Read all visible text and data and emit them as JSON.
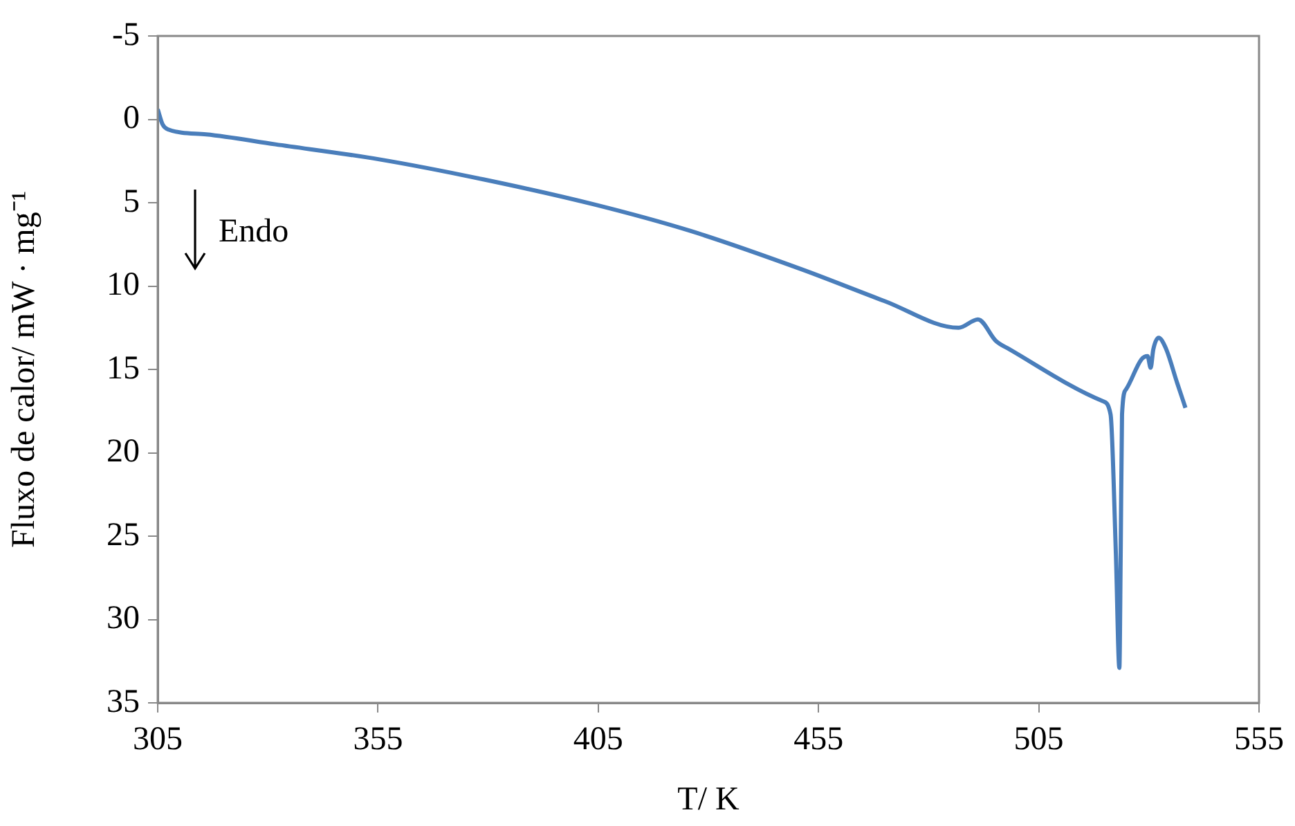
{
  "chart_data": {
    "type": "line",
    "xlabel": "T/ K",
    "ylabel": "Fluxo de calor/ mW · mg⁻¹",
    "annotations": [
      "Endo"
    ],
    "xlim": [
      305,
      555
    ],
    "xticks": [
      305,
      355,
      405,
      455,
      505,
      555
    ],
    "ylim": [
      35,
      -5
    ],
    "yticks": [
      -5,
      0,
      5,
      10,
      15,
      20,
      25,
      30,
      35
    ],
    "grid": false,
    "legend": false,
    "marker": "none",
    "line_style": "solid",
    "series": [
      {
        "color": "#4a7ebb",
        "x": [
          305,
          306.1,
          307.3,
          316,
          331.7,
          355.3,
          378.9,
          404,
          426,
          451.2,
          470,
          486.8,
          491.2,
          495.3,
          498.4,
          519.5,
          521.3,
          522.5,
          523.3,
          523.6,
          523.9,
          524.8,
          528.3,
          529.7,
          530.4,
          531,
          532.2,
          533.8,
          536.4,
          538.3
        ],
        "values": [
          -0.6,
          0.3,
          0.6,
          0.9,
          1.5,
          2.4,
          3.6,
          5.1,
          6.7,
          9.0,
          10.9,
          12.5,
          12.0,
          13.3,
          13.8,
          16.9,
          17.7,
          26,
          32.9,
          26,
          17.7,
          16.2,
          14.4,
          14.2,
          14.9,
          13.8,
          13.1,
          13.7,
          15.8,
          17.3
        ]
      }
    ]
  }
}
